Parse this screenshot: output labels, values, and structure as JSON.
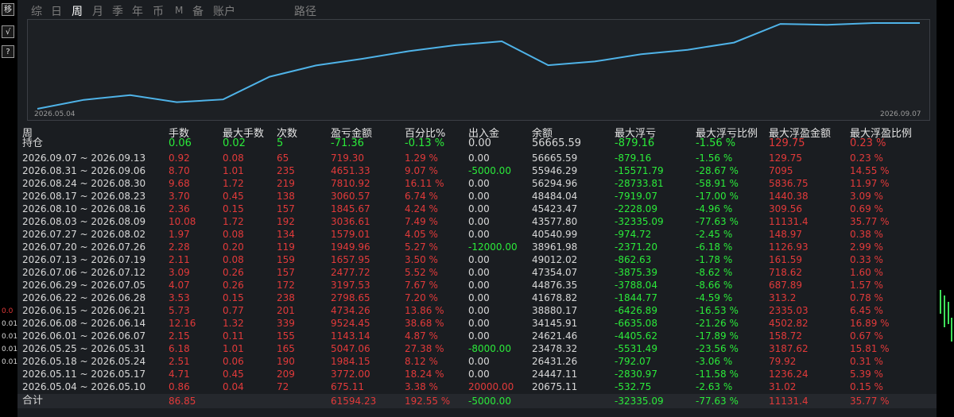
{
  "left_toolbar": {
    "move_label": "移",
    "check_label": "√",
    "help_label": "?",
    "numbers": [
      "0.0",
      "0.01",
      "0.01",
      "0.01",
      "0.01"
    ]
  },
  "tabs": [
    {
      "label": "综",
      "active": false
    },
    {
      "label": "日",
      "active": false
    },
    {
      "label": "周",
      "active": true
    },
    {
      "label": "月",
      "active": false
    },
    {
      "label": "季",
      "active": false
    },
    {
      "label": "年",
      "active": false
    },
    {
      "label": "币",
      "active": false
    },
    {
      "label": "M",
      "active": false
    },
    {
      "label": "备",
      "active": false
    },
    {
      "label": "账户",
      "active": false
    },
    {
      "label": "路径",
      "active": false
    }
  ],
  "chart_data": {
    "type": "line",
    "x_start_label": "2026.05.04",
    "x_end_label": "2026.09.07",
    "series": [
      {
        "values": [
          20675.11,
          24447.11,
          26431.26,
          23478.32,
          24621.46,
          34145.91,
          38880.17,
          41678.82,
          44876.35,
          47354.07,
          49012.02,
          38961.98,
          40540.99,
          43577.8,
          45423.47,
          48484.04,
          56294.96,
          55946.29,
          56665.59,
          56665.59
        ]
      }
    ],
    "line_color": "#4fb3e8"
  },
  "table": {
    "headers": [
      "周",
      "手数",
      "最大手数",
      "次数",
      "盈亏金额",
      "百分比%",
      "出入金",
      "余额",
      "最大浮亏",
      "最大浮亏比例",
      "最大浮盈金额",
      "最大浮盈比例"
    ],
    "holding": [
      "持仓",
      "0.06",
      "0.02",
      "5",
      "-71.36",
      "-0.13 %",
      "0.00",
      "56665.59",
      "-879.16",
      "-1.56 %",
      "129.75",
      "0.23 %"
    ],
    "rows": [
      [
        "2026.09.07 ~ 2026.09.13",
        "0.92",
        "0.08",
        "65",
        "719.30",
        "1.29 %",
        "0.00",
        "56665.59",
        "-879.16",
        "-1.56 %",
        "129.75",
        "0.23 %"
      ],
      [
        "2026.08.31 ~ 2026.09.06",
        "8.70",
        "1.01",
        "235",
        "4651.33",
        "9.07 %",
        "-5000.00",
        "55946.29",
        "-15571.79",
        "-28.67 %",
        "7095",
        "14.55 %"
      ],
      [
        "2026.08.24 ~ 2026.08.30",
        "9.68",
        "1.72",
        "219",
        "7810.92",
        "16.11 %",
        "0.00",
        "56294.96",
        "-28733.81",
        "-58.91 %",
        "5836.75",
        "11.97 %"
      ],
      [
        "2026.08.17 ~ 2026.08.23",
        "3.70",
        "0.45",
        "138",
        "3060.57",
        "6.74 %",
        "0.00",
        "48484.04",
        "-7919.07",
        "-17.00 %",
        "1440.38",
        "3.09 %"
      ],
      [
        "2026.08.10 ~ 2026.08.16",
        "2.36",
        "0.15",
        "157",
        "1845.67",
        "4.24 %",
        "0.00",
        "45423.47",
        "-2228.09",
        "-4.96 %",
        "309.56",
        "0.69 %"
      ],
      [
        "2026.08.03 ~ 2026.08.09",
        "10.08",
        "1.72",
        "192",
        "3036.61",
        "7.49 %",
        "0.00",
        "43577.80",
        "-32335.09",
        "-77.63 %",
        "11131.4",
        "35.77 %"
      ],
      [
        "2026.07.27 ~ 2026.08.02",
        "1.97",
        "0.08",
        "134",
        "1579.01",
        "4.05 %",
        "0.00",
        "40540.99",
        "-974.72",
        "-2.45 %",
        "148.97",
        "0.38 %"
      ],
      [
        "2026.07.20 ~ 2026.07.26",
        "2.28",
        "0.20",
        "119",
        "1949.96",
        "5.27 %",
        "-12000.00",
        "38961.98",
        "-2371.20",
        "-6.18 %",
        "1126.93",
        "2.99 %"
      ],
      [
        "2026.07.13 ~ 2026.07.19",
        "2.11",
        "0.08",
        "159",
        "1657.95",
        "3.50 %",
        "0.00",
        "49012.02",
        "-862.63",
        "-1.78 %",
        "161.59",
        "0.33 %"
      ],
      [
        "2026.07.06 ~ 2026.07.12",
        "3.09",
        "0.26",
        "157",
        "2477.72",
        "5.52 %",
        "0.00",
        "47354.07",
        "-3875.39",
        "-8.62 %",
        "718.62",
        "1.60 %"
      ],
      [
        "2026.06.29 ~ 2026.07.05",
        "4.07",
        "0.26",
        "172",
        "3197.53",
        "7.67 %",
        "0.00",
        "44876.35",
        "-3788.04",
        "-8.66 %",
        "687.89",
        "1.57 %"
      ],
      [
        "2026.06.22 ~ 2026.06.28",
        "3.53",
        "0.15",
        "238",
        "2798.65",
        "7.20 %",
        "0.00",
        "41678.82",
        "-1844.77",
        "-4.59 %",
        "313.2",
        "0.78 %"
      ],
      [
        "2026.06.15 ~ 2026.06.21",
        "5.73",
        "0.77",
        "201",
        "4734.26",
        "13.86 %",
        "0.00",
        "38880.17",
        "-6426.89",
        "-16.53 %",
        "2335.03",
        "6.45 %"
      ],
      [
        "2026.06.08 ~ 2026.06.14",
        "12.16",
        "1.32",
        "339",
        "9524.45",
        "38.68 %",
        "0.00",
        "34145.91",
        "-6635.08",
        "-21.26 %",
        "4502.82",
        "16.89 %"
      ],
      [
        "2026.06.01 ~ 2026.06.07",
        "2.15",
        "0.11",
        "155",
        "1143.14",
        "4.87 %",
        "0.00",
        "24621.46",
        "-4405.62",
        "-17.89 %",
        "158.72",
        "0.67 %"
      ],
      [
        "2026.05.25 ~ 2026.05.31",
        "6.18",
        "1.01",
        "165",
        "5047.06",
        "27.38 %",
        "-8000.00",
        "23478.32",
        "-5531.49",
        "-23.56 %",
        "3187.62",
        "15.81 %"
      ],
      [
        "2026.05.18 ~ 2026.05.24",
        "2.51",
        "0.06",
        "190",
        "1984.15",
        "8.12 %",
        "0.00",
        "26431.26",
        "-792.07",
        "-3.06 %",
        "79.92",
        "0.31 %"
      ],
      [
        "2026.05.11 ~ 2026.05.17",
        "4.71",
        "0.45",
        "209",
        "3772.00",
        "18.24 %",
        "0.00",
        "24447.11",
        "-2830.97",
        "-11.58 %",
        "1236.24",
        "5.39 %"
      ],
      [
        "2026.05.04 ~ 2026.05.10",
        "0.86",
        "0.04",
        "72",
        "675.11",
        "3.38 %",
        "20000.00",
        "20675.11",
        "-532.75",
        "-2.63 %",
        "31.02",
        "0.15 %"
      ]
    ],
    "total": [
      "合计",
      "86.85",
      "",
      "",
      "61594.23",
      "192.55 %",
      "-5000.00",
      "",
      "-32335.09",
      "-77.63 %",
      "11131.4",
      "35.77 %"
    ]
  },
  "colors": {
    "positive": "#e23a3a",
    "negative": "#2bea3a",
    "neutral": "#d8d8d8",
    "background": "#1a1d21"
  }
}
